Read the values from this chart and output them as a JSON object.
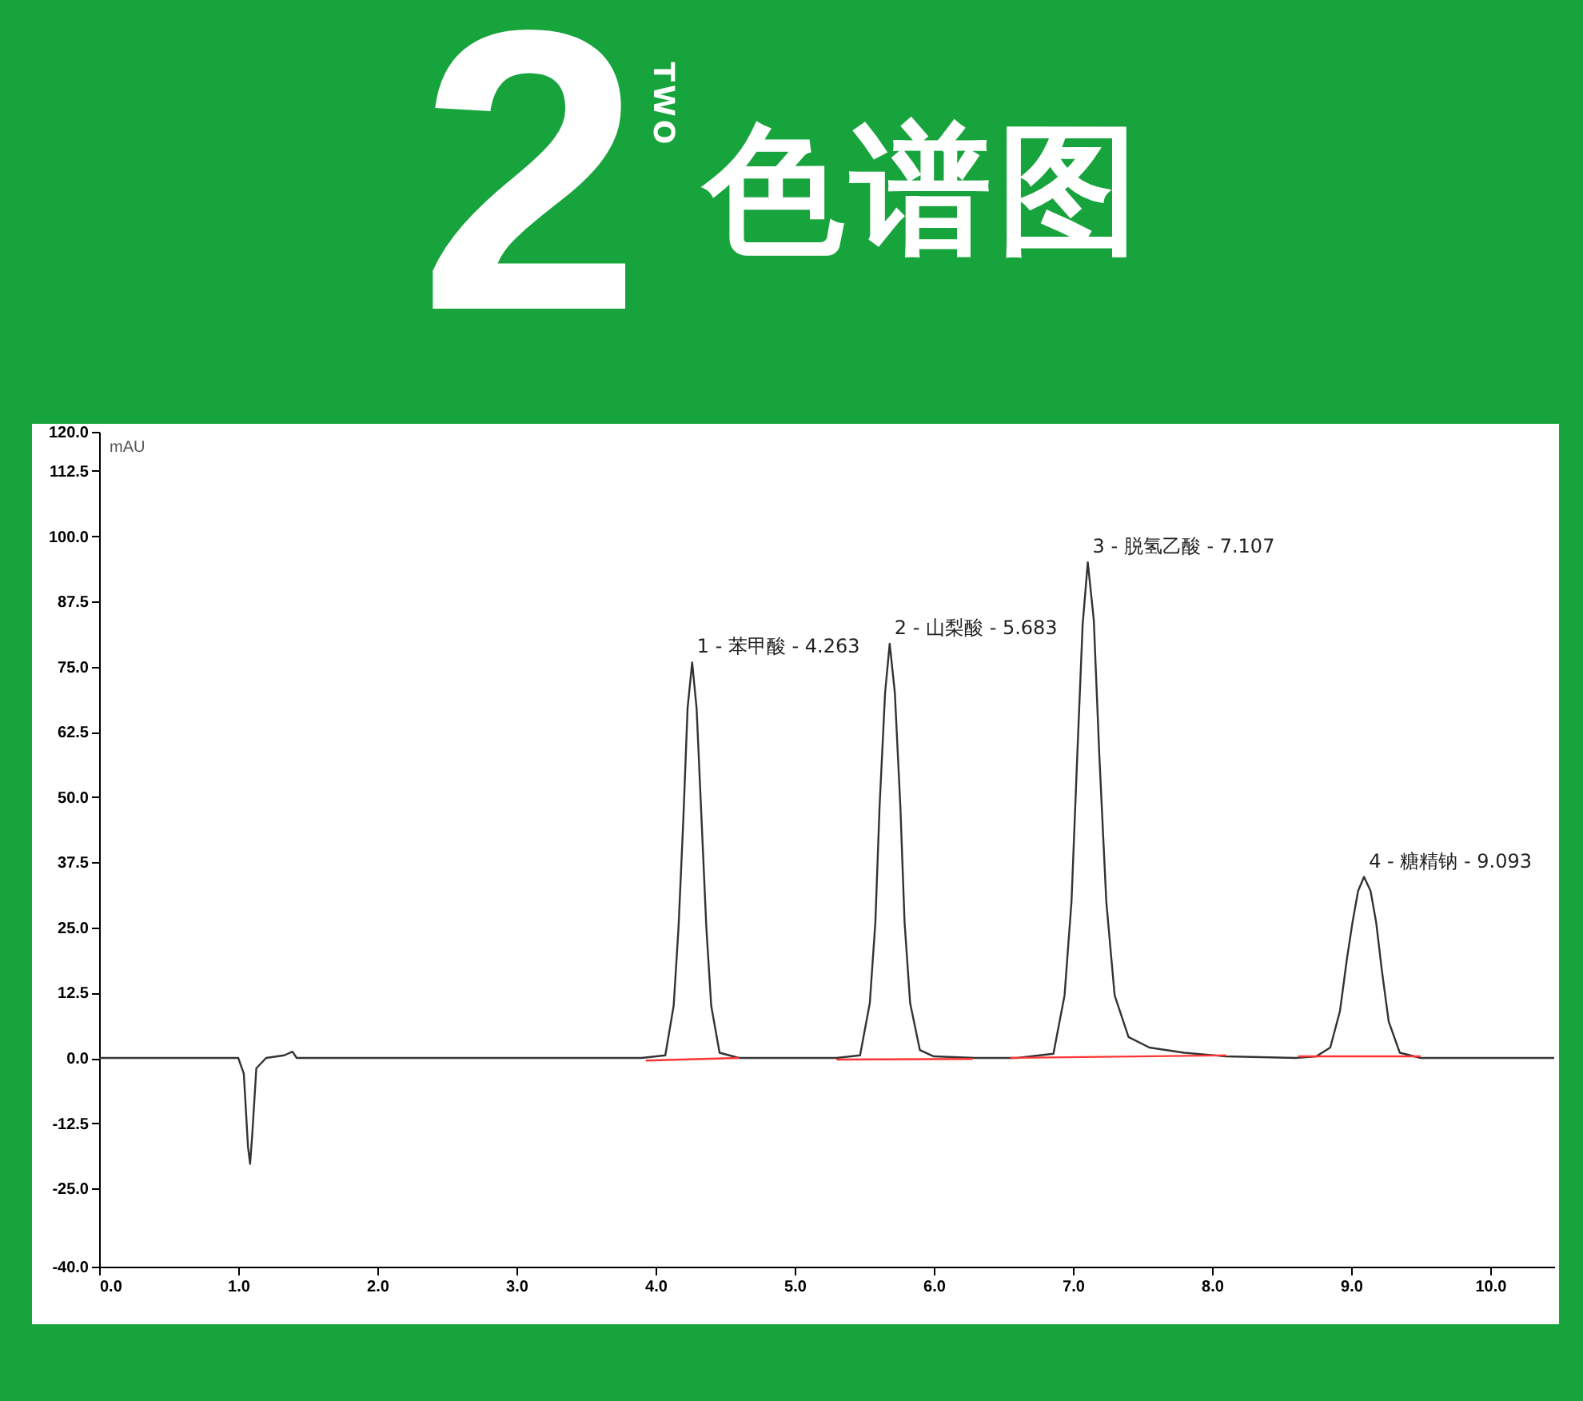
{
  "chart_data": {
    "type": "line",
    "title": "色谱图",
    "ylabel": "mAU",
    "annotations": [
      "2",
      "TWO",
      {
        "text": "1 - 苯甲酸 - 4.263",
        "x": 4.263,
        "y": 75.8
      },
      {
        "text": "2 - 山梨酸 - 5.683",
        "x": 5.683,
        "y": 79.4
      },
      {
        "text": "3 - 脱氢乙酸 - 7.107",
        "x": 7.107,
        "y": 95
      },
      {
        "text": "4 - 糖精钠 - 9.093",
        "x": 9.093,
        "y": 34.7
      }
    ],
    "xlim": [
      0,
      10.46
    ],
    "xticks": [
      {
        "value": 0,
        "label": "0.0"
      },
      {
        "value": 1,
        "label": "1.0"
      },
      {
        "value": 2,
        "label": "2.0"
      },
      {
        "value": 3,
        "label": "3.0"
      },
      {
        "value": 4,
        "label": "4.0"
      },
      {
        "value": 5,
        "label": "5.0"
      },
      {
        "value": 6,
        "label": "6.0"
      },
      {
        "value": 7,
        "label": "7.0"
      },
      {
        "value": 8,
        "label": "8.0"
      },
      {
        "value": 9,
        "label": "9.0"
      },
      {
        "value": 10,
        "label": "10.0"
      }
    ],
    "ylim": [
      -40,
      120
    ],
    "yticks": [
      {
        "value": -40,
        "label": "-40.0"
      },
      {
        "value": -25,
        "label": "-25.0"
      },
      -12.5,
      {
        "value": 0,
        "label": "0.0"
      },
      12.5,
      {
        "value": 25,
        "label": "25.0"
      },
      37.5,
      {
        "value": 50,
        "label": "50.0"
      },
      62.5,
      {
        "value": 75,
        "label": "75.0"
      },
      87.5,
      {
        "value": 100,
        "label": "100.0"
      },
      112.5,
      {
        "value": 120,
        "label": "120.0"
      }
    ],
    "grid": false,
    "marker": "none",
    "line_style": "solid",
    "series": [
      {
        "color": "#333333",
        "x": [
          0,
          1.0,
          1.04,
          1.07,
          1.085,
          1.1,
          1.13,
          1.2,
          1.33,
          1.39,
          1.42,
          1.5,
          3.9,
          4.07,
          4.13,
          4.165,
          4.2,
          4.23,
          4.263,
          4.295,
          4.33,
          4.365,
          4.4,
          4.46,
          4.6,
          5.3,
          5.47,
          5.54,
          5.58,
          5.61,
          5.65,
          5.683,
          5.72,
          5.76,
          5.79,
          5.83,
          5.9,
          6.0,
          6.3,
          6.6,
          6.86,
          6.94,
          6.99,
          7.03,
          7.07,
          7.107,
          7.15,
          7.19,
          7.24,
          7.3,
          7.4,
          7.55,
          7.8,
          8.1,
          8.6,
          8.75,
          8.85,
          8.92,
          8.97,
          9.01,
          9.05,
          9.093,
          9.14,
          9.18,
          9.22,
          9.27,
          9.35,
          9.5,
          10.46
        ],
        "values": [
          0,
          0,
          -3,
          -17,
          -20.3,
          -15,
          -2,
          0,
          0.5,
          1.2,
          0,
          0,
          0,
          0.5,
          10,
          25,
          46,
          67,
          75.8,
          67,
          46,
          25,
          10,
          1,
          0,
          0,
          0.5,
          10.5,
          26,
          48,
          70,
          79.4,
          70,
          48,
          26,
          10.5,
          1.5,
          0.3,
          0,
          0,
          0.8,
          12,
          30,
          57,
          83,
          95,
          84,
          58,
          30,
          12,
          4,
          2,
          1,
          0.3,
          0,
          0.3,
          2,
          9,
          19,
          26,
          32,
          34.7,
          32,
          26,
          17,
          7,
          1,
          0,
          0
        ]
      },
      {
        "color": "#ff3333",
        "x": [
          3.93,
          4.6
        ],
        "values": [
          -0.5,
          0
        ]
      },
      {
        "color": "#ff3333",
        "x": [
          5.3,
          6.28
        ],
        "values": [
          -0.3,
          -0.2
        ]
      },
      {
        "color": "#ff3333",
        "x": [
          6.55,
          8.1
        ],
        "values": [
          0,
          0.5
        ]
      },
      {
        "color": "#ff3333",
        "x": [
          8.62,
          9.5
        ],
        "values": [
          0.3,
          0.3
        ]
      }
    ]
  }
}
